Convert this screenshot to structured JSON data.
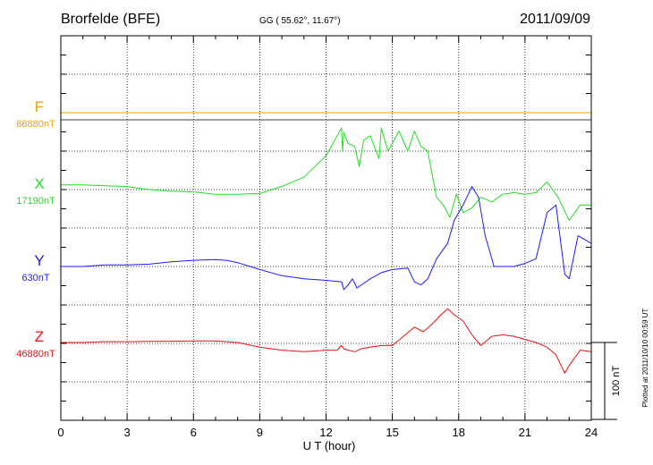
{
  "header": {
    "station": "Brorfelde (BFE)",
    "coords": "GG ( 55.62°,  11.67°)",
    "date": "2011/09/09",
    "plotted": "Plotted at 2011/10/10 00:59 UT"
  },
  "chart_data": {
    "type": "line",
    "xlabel": "U T (hour)",
    "xlim": [
      0,
      24
    ],
    "xticks": [
      "0",
      "3",
      "6",
      "9",
      "12",
      "15",
      "18",
      "21",
      "24"
    ],
    "scale_label": "100 nT",
    "nT_per_grid": 25,
    "series": [
      {
        "name": "F",
        "baseline_label": "88880nT",
        "color": "#f0a000",
        "x": [
          0,
          24
        ],
        "y": [
          0,
          0
        ]
      },
      {
        "name": "X",
        "baseline_label": "17190nT",
        "color": "#22dd22",
        "x": [
          0,
          1,
          2,
          3,
          4,
          5,
          6,
          7,
          8,
          9,
          10,
          11,
          11.5,
          12,
          12.5,
          12.7,
          12.75,
          12.8,
          13,
          13.3,
          13.5,
          13.7,
          14,
          14.4,
          14.5,
          14.8,
          15,
          15.3,
          15.7,
          16,
          16.3,
          16.6,
          17,
          17.3,
          17.6,
          17.9,
          18.2,
          18.6,
          19,
          19.5,
          20,
          20.5,
          21,
          21.5,
          22,
          22.5,
          23,
          23.5,
          24
        ],
        "y": [
          3,
          3,
          2.5,
          2,
          0,
          -1,
          -1.5,
          -3,
          -3,
          -2.5,
          2,
          8,
          15,
          22,
          35,
          40,
          25,
          37,
          30,
          28,
          15,
          32,
          35,
          20,
          40,
          25,
          30,
          38,
          25,
          38,
          28,
          25,
          -5,
          -10,
          -18,
          -3,
          -15,
          -12,
          -5,
          -8,
          -3,
          -2,
          -3,
          -2,
          5,
          -5,
          -20,
          -10,
          -10
        ]
      },
      {
        "name": "Y",
        "baseline_label": "630nT",
        "color": "#1a1aff",
        "x": [
          0,
          1,
          2,
          3,
          4,
          5,
          6,
          7,
          7.5,
          8,
          9,
          10,
          11,
          12,
          12.7,
          12.8,
          13,
          13.2,
          13.4,
          13.6,
          14,
          14.5,
          15,
          15.7,
          16,
          16.3,
          16.6,
          17,
          17.5,
          17.8,
          18.2,
          18.6,
          18.9,
          19.2,
          19.6,
          20,
          20.5,
          21,
          21.5,
          22,
          22.4,
          22.8,
          23,
          23.4,
          24
        ],
        "y": [
          0,
          0,
          1,
          1,
          1.5,
          3,
          4,
          4.5,
          4,
          2.5,
          -2,
          -6,
          -8,
          -9,
          -10,
          -15,
          -12,
          -8,
          -14,
          -12,
          -8,
          -4,
          -2,
          -1,
          -10,
          -12,
          -8,
          5,
          15,
          30,
          40,
          52,
          45,
          20,
          0,
          0,
          0,
          2,
          5,
          35,
          40,
          -5,
          -8,
          20,
          15
        ]
      },
      {
        "name": "Z",
        "baseline_label": "46880nT",
        "color": "#ee1111",
        "x": [
          0,
          1,
          2,
          3,
          4,
          5,
          6,
          7,
          8,
          9,
          10,
          11,
          12,
          12.5,
          12.7,
          12.8,
          13,
          13.3,
          13.6,
          14,
          14.5,
          15,
          15.5,
          16,
          16.4,
          16.8,
          17.2,
          17.5,
          17.8,
          18.2,
          18.6,
          19,
          19.5,
          20,
          20.5,
          21,
          21.5,
          22,
          22.4,
          22.8,
          23,
          23.5,
          24
        ],
        "y": [
          0,
          0,
          0.5,
          0.5,
          0.7,
          0.8,
          1,
          1,
          0,
          -3,
          -5,
          -6,
          -5,
          -5,
          -2,
          -4,
          -5,
          -6,
          -4,
          -3,
          -2,
          -2,
          4,
          10,
          7,
          12,
          18,
          22,
          18,
          14,
          5,
          -2,
          4,
          5,
          4,
          2,
          0,
          -3,
          -8,
          -20,
          -15,
          -5,
          -6
        ]
      }
    ]
  }
}
